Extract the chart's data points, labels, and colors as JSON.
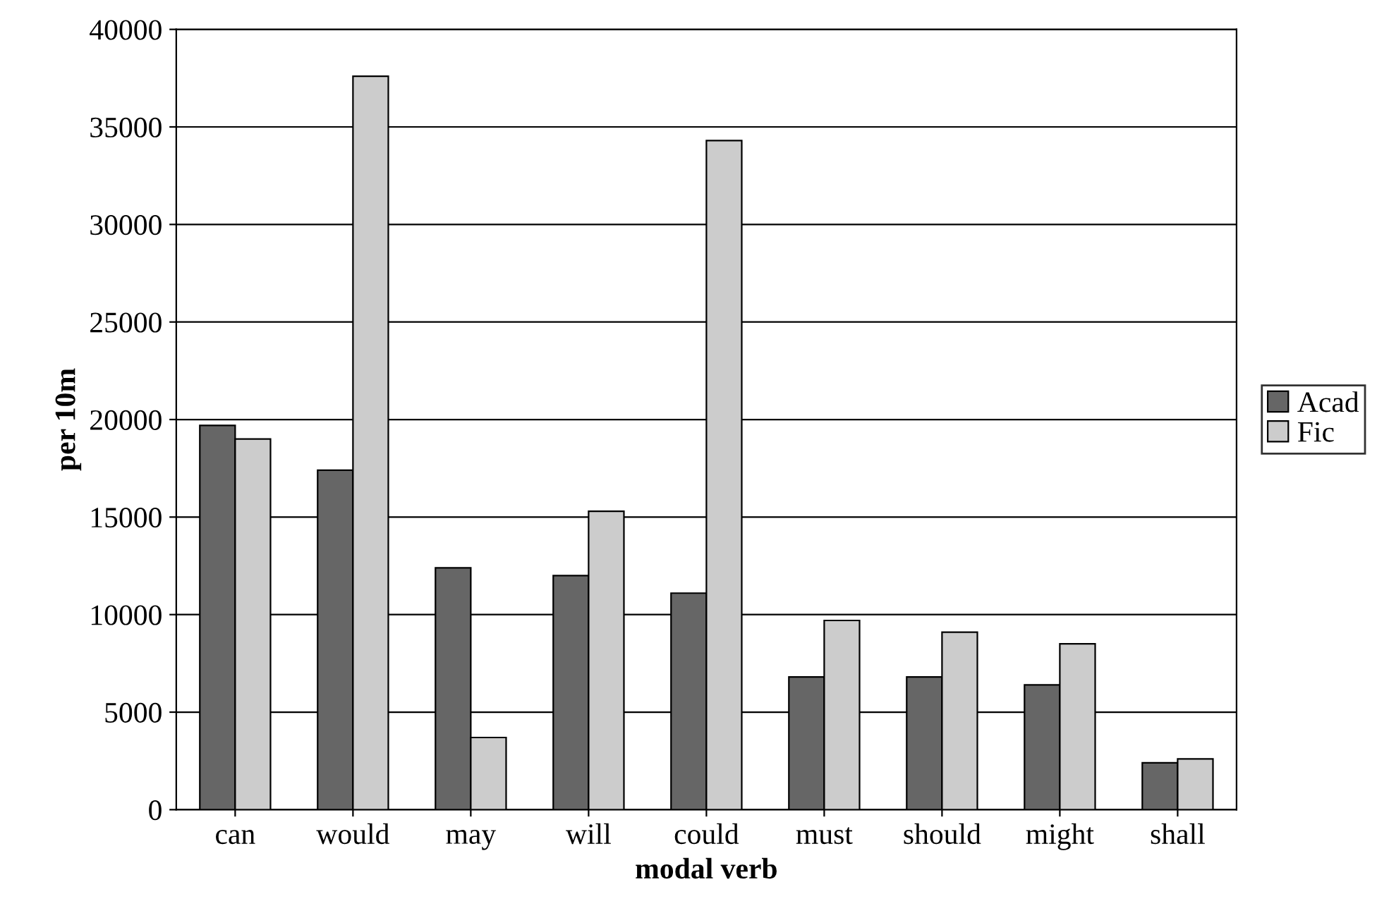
{
  "chart_data": {
    "type": "bar",
    "xlabel": "modal verb",
    "ylabel": "per 10m",
    "categories": [
      "can",
      "would",
      "may",
      "will",
      "could",
      "must",
      "should",
      "might",
      "shall"
    ],
    "series": [
      {
        "name": "Acad",
        "color": "#666666",
        "values": [
          19700,
          17400,
          12400,
          12000,
          11100,
          6800,
          6800,
          6400,
          2400
        ]
      },
      {
        "name": "Fic",
        "color": "#cccccc",
        "values": [
          19000,
          37600,
          3700,
          15300,
          34300,
          9700,
          9100,
          8500,
          2600
        ]
      }
    ],
    "ylim": [
      0,
      40000
    ],
    "yticks": [
      0,
      5000,
      10000,
      15000,
      20000,
      25000,
      30000,
      35000,
      40000
    ],
    "grid": "y",
    "legend": "right"
  }
}
